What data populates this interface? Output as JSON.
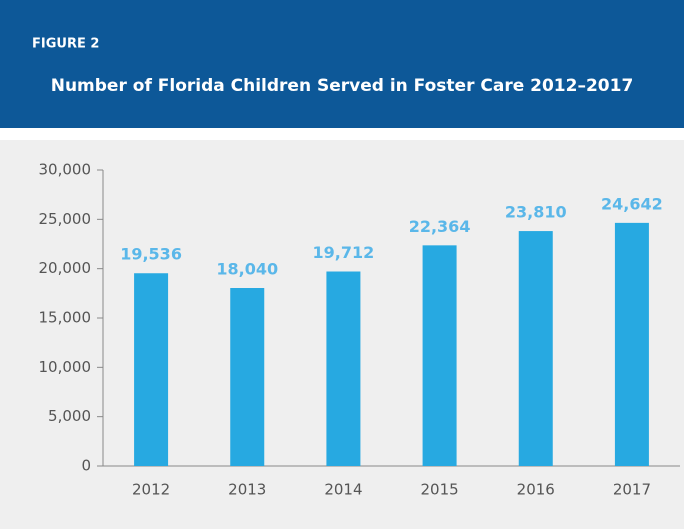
{
  "chart_data": {
    "type": "bar",
    "figure_label": "FIGURE 2",
    "title": "Number of Florida Children Served in Foster Care 2012–2017",
    "categories": [
      "2012",
      "2013",
      "2014",
      "2015",
      "2016",
      "2017"
    ],
    "values": [
      19536,
      18040,
      19712,
      22364,
      23810,
      24642
    ],
    "value_labels": [
      "19,536",
      "18,040",
      "19,712",
      "22,364",
      "23,810",
      "24,642"
    ],
    "color": "#27a9e1",
    "label_color": "#5ab7e9",
    "ylim": [
      0,
      30000
    ],
    "yticks": [
      0,
      {
        "value": 5000,
        "label": "5,000"
      },
      {
        "value": 10000,
        "label": "10,000"
      },
      {
        "value": 15000,
        "label": "15,000"
      },
      {
        "value": 20000,
        "label": "20,000"
      },
      {
        "value": 25000,
        "label": "25,000"
      },
      {
        "value": 30000,
        "label": "30,000"
      }
    ],
    "grid": false
  }
}
